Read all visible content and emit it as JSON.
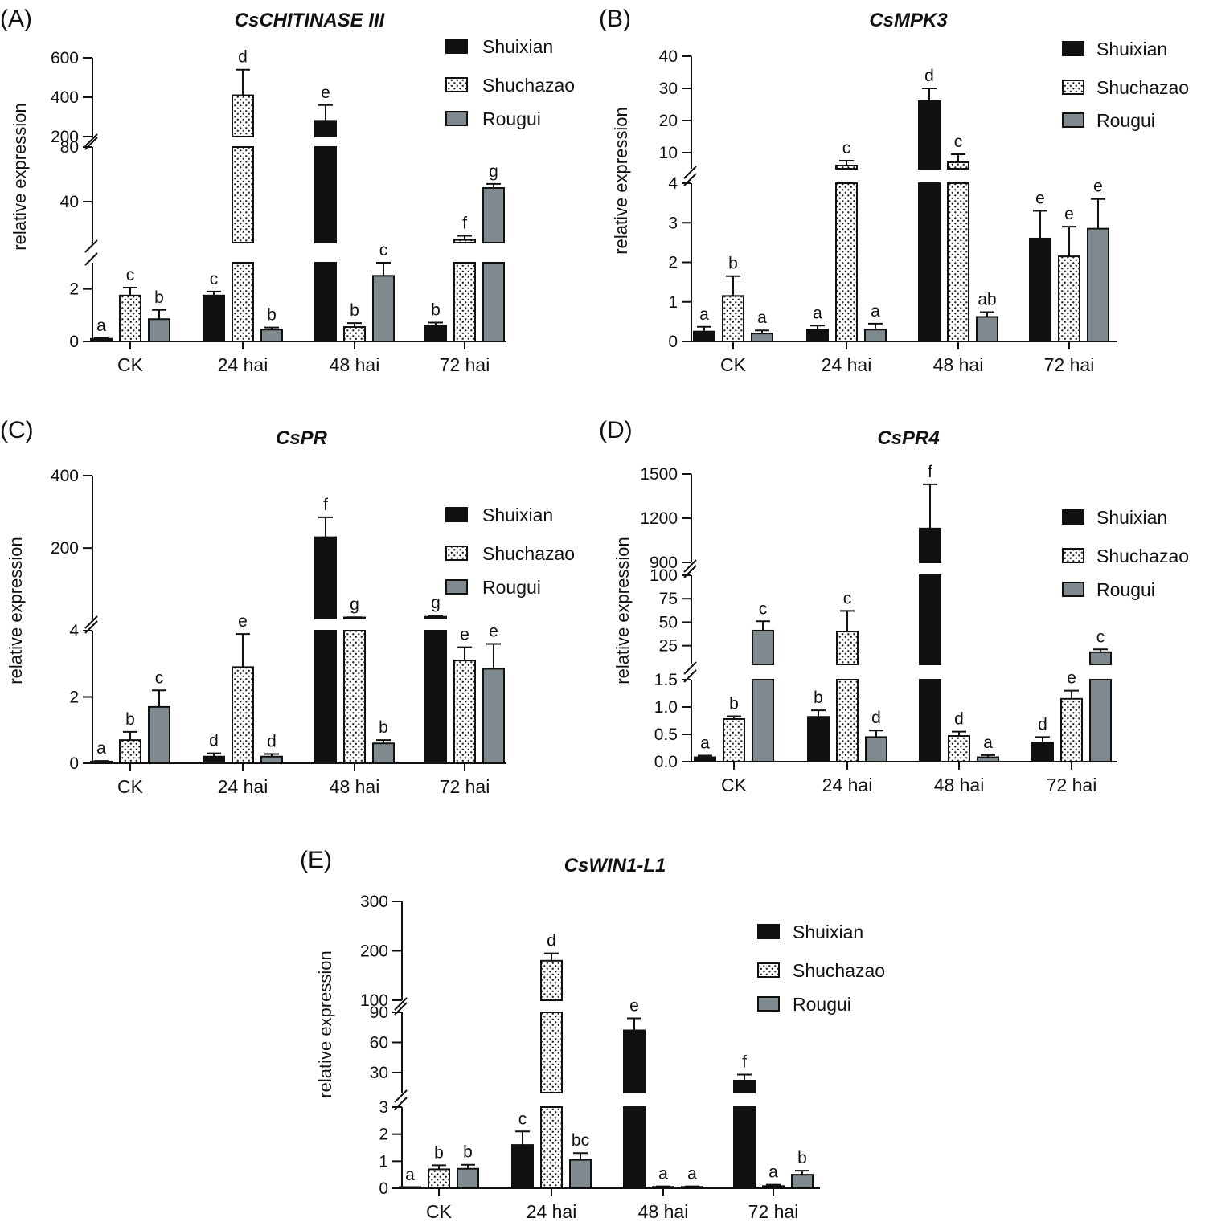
{
  "figure": {
    "legend": [
      "Shuixian",
      "Shuchazao",
      "Rougui"
    ],
    "series_colors": {
      "Shuixian": "#111111",
      "Shuchazao": "#f4f4f4",
      "Rougui": "#7f8a8e"
    },
    "ylabel": "relative expression"
  },
  "chart_data": [
    {
      "panel": "(A)",
      "type": "bar",
      "title": "CsCHITINASE III",
      "xlabel": "",
      "ylabel": "relative expression",
      "categories": [
        "CK",
        "24 hai",
        "48 hai",
        "72 hai"
      ],
      "y_segments": [
        {
          "range": [
            0,
            3
          ],
          "ticks": [
            "0",
            "2"
          ]
        },
        {
          "range": [
            10,
            80
          ],
          "ticks": [
            "40",
            "80"
          ]
        },
        {
          "range": [
            200,
            600
          ],
          "ticks": [
            "200",
            "400",
            "600"
          ]
        }
      ],
      "series": [
        {
          "name": "Shuixian",
          "values": [
            0.1,
            1.75,
            280,
            0.6
          ],
          "errors": [
            0.03,
            0.15,
            80,
            0.12
          ],
          "letters": [
            "a",
            "c",
            "e",
            "b"
          ]
        },
        {
          "name": "Shuchazao",
          "values": [
            1.75,
            410,
            0.55,
            12
          ],
          "errors": [
            0.3,
            130,
            0.15,
            3
          ],
          "letters": [
            "c",
            "d",
            "b",
            "f"
          ]
        },
        {
          "name": "Rougui",
          "values": [
            0.85,
            0.45,
            2.5,
            50
          ],
          "errors": [
            0.35,
            0.08,
            0.6,
            3
          ],
          "letters": [
            "b",
            "b",
            "c",
            "g"
          ]
        }
      ]
    },
    {
      "panel": "(B)",
      "type": "bar",
      "title": "CsMPK3",
      "xlabel": "",
      "ylabel": "relative expression",
      "categories": [
        "CK",
        "24 hai",
        "48 hai",
        "72 hai"
      ],
      "y_segments": [
        {
          "range": [
            0,
            4
          ],
          "ticks": [
            "0",
            "1",
            "2",
            "3",
            "4"
          ]
        },
        {
          "range": [
            5,
            40
          ],
          "ticks": [
            "10",
            "20",
            "30",
            "40"
          ]
        }
      ],
      "series": [
        {
          "name": "Shuixian",
          "values": [
            0.25,
            0.3,
            26,
            2.6
          ],
          "errors": [
            0.12,
            0.1,
            4,
            0.7
          ],
          "letters": [
            "a",
            "a",
            "d",
            "e"
          ]
        },
        {
          "name": "Shuchazao",
          "values": [
            1.15,
            6,
            7,
            2.15
          ],
          "errors": [
            0.5,
            1.5,
            2.5,
            0.75
          ],
          "letters": [
            "b",
            "c",
            "c",
            "e"
          ]
        },
        {
          "name": "Rougui",
          "values": [
            0.2,
            0.3,
            0.62,
            2.85
          ],
          "errors": [
            0.08,
            0.15,
            0.12,
            0.75
          ],
          "letters": [
            "a",
            "a",
            "ab",
            "e"
          ]
        }
      ]
    },
    {
      "panel": "(C)",
      "type": "bar",
      "title": "CsPR",
      "xlabel": "",
      "ylabel": "relative expression",
      "categories": [
        "CK",
        "24 hai",
        "48 hai",
        "72 hai"
      ],
      "y_segments": [
        {
          "range": [
            0,
            4
          ],
          "ticks": [
            "0",
            "2",
            "4"
          ]
        },
        {
          "range": [
            5,
            400
          ],
          "ticks": [
            "200",
            "400"
          ]
        }
      ],
      "series": [
        {
          "name": "Shuixian",
          "values": [
            0.05,
            0.2,
            230,
            10
          ],
          "errors": [
            0.02,
            0.1,
            55,
            4
          ],
          "letters": [
            "a",
            "d",
            "f",
            "g"
          ]
        },
        {
          "name": "Shuchazao",
          "values": [
            0.7,
            2.9,
            8,
            3.1
          ],
          "errors": [
            0.25,
            1.0,
            1,
            0.4
          ],
          "letters": [
            "b",
            "e",
            "g",
            "e"
          ]
        },
        {
          "name": "Rougui",
          "values": [
            1.7,
            0.2,
            0.6,
            2.85
          ],
          "errors": [
            0.5,
            0.08,
            0.1,
            0.75
          ],
          "letters": [
            "c",
            "d",
            "b",
            "e"
          ]
        }
      ]
    },
    {
      "panel": "(D)",
      "type": "bar",
      "title": "CsPR4",
      "xlabel": "",
      "ylabel": "relative expression",
      "categories": [
        "CK",
        "24 hai",
        "48 hai",
        "72 hai"
      ],
      "y_segments": [
        {
          "range": [
            0,
            1.5
          ],
          "ticks": [
            "0.0",
            "0.5",
            "1.0",
            "1.5"
          ]
        },
        {
          "range": [
            5,
            100
          ],
          "ticks": [
            "25",
            "50",
            "75",
            "100"
          ]
        },
        {
          "range": [
            900,
            1500
          ],
          "ticks": [
            "900",
            "1200",
            "1500"
          ]
        }
      ],
      "series": [
        {
          "name": "Shuixian",
          "values": [
            0.08,
            0.82,
            1130,
            0.35
          ],
          "errors": [
            0.03,
            0.12,
            300,
            0.1
          ],
          "letters": [
            "a",
            "b",
            "f",
            "d"
          ]
        },
        {
          "name": "Shuchazao",
          "values": [
            0.78,
            40,
            0.47,
            1.15
          ],
          "errors": [
            0.05,
            22,
            0.08,
            0.15
          ],
          "letters": [
            "b",
            "c",
            "d",
            "e"
          ]
        },
        {
          "name": "Rougui",
          "values": [
            41,
            0.45,
            0.08,
            18
          ],
          "errors": [
            10,
            0.12,
            0.04,
            3
          ],
          "letters": [
            "c",
            "d",
            "a",
            "c"
          ]
        }
      ]
    },
    {
      "panel": "(E)",
      "type": "bar",
      "title": "CsWIN1-L1",
      "xlabel": "",
      "ylabel": "relative expression",
      "categories": [
        "CK",
        "24 hai",
        "48 hai",
        "72 hai"
      ],
      "y_segments": [
        {
          "range": [
            0,
            3
          ],
          "ticks": [
            "0",
            "1",
            "2",
            "3"
          ]
        },
        {
          "range": [
            10,
            90
          ],
          "ticks": [
            "30",
            "60",
            "90"
          ]
        },
        {
          "range": [
            100,
            300
          ],
          "ticks": [
            "100",
            "200",
            "300"
          ]
        }
      ],
      "series": [
        {
          "name": "Shuixian",
          "values": [
            0.02,
            1.6,
            72,
            22
          ],
          "errors": [
            0.01,
            0.5,
            12,
            6
          ],
          "letters": [
            "a",
            "c",
            "e",
            "f"
          ]
        },
        {
          "name": "Shuchazao",
          "values": [
            0.7,
            180,
            0.05,
            0.08
          ],
          "errors": [
            0.15,
            15,
            0.02,
            0.05
          ],
          "letters": [
            "b",
            "d",
            "a",
            "a"
          ]
        },
        {
          "name": "Rougui",
          "values": [
            0.72,
            1.05,
            0.05,
            0.5
          ],
          "errors": [
            0.15,
            0.25,
            0.02,
            0.15
          ],
          "letters": [
            "b",
            "bc",
            "a",
            "b"
          ]
        }
      ]
    }
  ]
}
